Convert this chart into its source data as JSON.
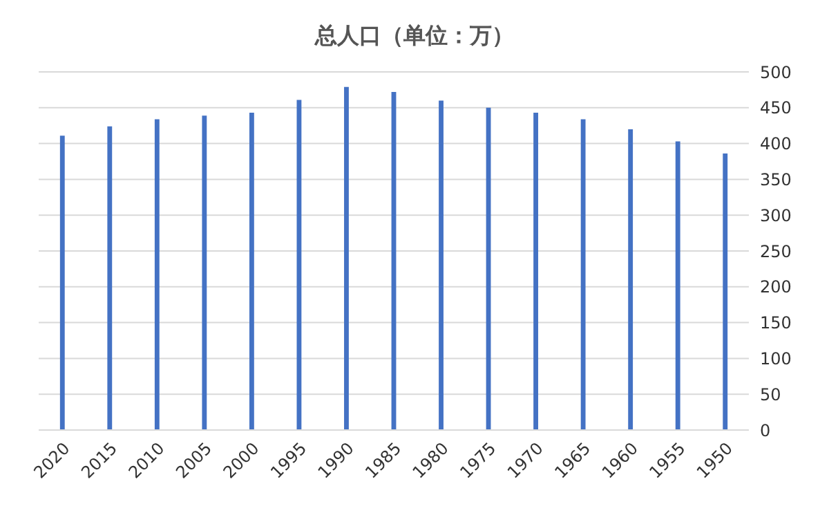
{
  "chart_data": {
    "type": "bar",
    "title": "总人口（单位：万）",
    "categories": [
      "2020",
      "2015",
      "2010",
      "2005",
      "2000",
      "1995",
      "1990",
      "1985",
      "1980",
      "1975",
      "1970",
      "1965",
      "1960",
      "1955",
      "1950"
    ],
    "values": [
      411,
      424,
      434,
      439,
      443,
      461,
      479,
      472,
      460,
      450,
      443,
      434,
      420,
      403,
      386
    ],
    "color": "#4472c4",
    "ylim": [
      0,
      500
    ],
    "yticks": [
      0,
      50,
      100,
      150,
      200,
      250,
      300,
      350,
      400,
      450,
      500
    ],
    "grid": "y"
  }
}
